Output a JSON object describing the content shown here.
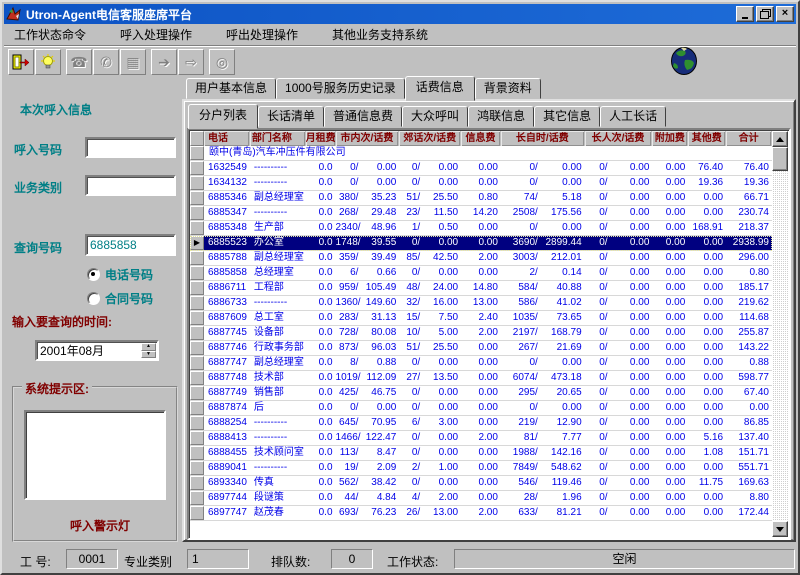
{
  "window": {
    "title": "Utron-Agent电信客服座席平台"
  },
  "menu": {
    "items": [
      "工作状态命令",
      "呼入处理操作",
      "呼出处理操作",
      "其他业务支持系统"
    ]
  },
  "toolbar": {
    "icons": [
      "exit-door-icon",
      "bulb-icon",
      "phone-answer-icon",
      "phone-hangup-icon",
      "hold-icon",
      "transfer-arrow-icon",
      "phone-forward-icon",
      "timer-icon"
    ],
    "globe": "globe-icon"
  },
  "left_panel": {
    "header": "本次呼入信息",
    "caller_label": "呼入号码",
    "caller_value": "",
    "service_label": "业务类别",
    "service_value": "",
    "query_label": "查询号码",
    "query_value": "6885858",
    "radio_phone": "电话号码",
    "radio_contract": "合同号码",
    "time_label": "输入要查询的时间:",
    "time_value": "2001年08月",
    "tips_label": "系统提示区:",
    "tips_value": "",
    "alarm_label": "呼入警示灯"
  },
  "tabs": {
    "main": [
      "用户基本信息",
      "1000号服务历史记录",
      "话费信息",
      "背景资料"
    ],
    "main_active": "话费信息",
    "sub": [
      "分户列表",
      "长话清单",
      "普通信息费",
      "大众呼叫",
      "鸿联信息",
      "其它信息",
      "人工长话"
    ],
    "sub_active": "分户列表"
  },
  "table": {
    "headers": [
      "电话",
      "部门名称",
      "月租费",
      "市内次/话费",
      "郊话次/话费",
      "信息费",
      "长自时/话费",
      "长人次/话费",
      "附加费",
      "其他费",
      "合计"
    ],
    "company_row": "颐中(青岛)汽车冲压件有限公司",
    "selected_phone": "6885523",
    "rows": [
      [
        "1632549",
        "----------",
        "0.0",
        "0/",
        "0.00",
        "0/",
        "0.00",
        "0.00",
        "0/",
        "0.00",
        "0/",
        "0.00",
        "0.00",
        "76.40",
        "76.40"
      ],
      [
        "1634132",
        "----------",
        "0.0",
        "0/",
        "0.00",
        "0/",
        "0.00",
        "0.00",
        "0/",
        "0.00",
        "0/",
        "0.00",
        "0.00",
        "19.36",
        "19.36"
      ],
      [
        "6885346",
        "副总经理室",
        "0.0",
        "380/",
        "35.23",
        "51/",
        "25.50",
        "0.80",
        "74/",
        "5.18",
        "0/",
        "0.00",
        "0.00",
        "0.00",
        "66.71"
      ],
      [
        "6885347",
        "----------",
        "0.0",
        "268/",
        "29.48",
        "23/",
        "11.50",
        "14.20",
        "2508/",
        "175.56",
        "0/",
        "0.00",
        "0.00",
        "0.00",
        "230.74"
      ],
      [
        "6885348",
        "生产部",
        "0.0",
        "2340/",
        "48.96",
        "1/",
        "0.50",
        "0.00",
        "0/",
        "0.00",
        "0/",
        "0.00",
        "0.00",
        "168.91",
        "218.37"
      ],
      [
        "6885523",
        "办公室",
        "0.0",
        "1748/",
        "39.55",
        "0/",
        "0.00",
        "0.00",
        "3690/",
        "2899.44",
        "0/",
        "0.00",
        "0.00",
        "0.00",
        "2938.99"
      ],
      [
        "6885788",
        "副总经理室",
        "0.0",
        "359/",
        "39.49",
        "85/",
        "42.50",
        "2.00",
        "3003/",
        "212.01",
        "0/",
        "0.00",
        "0.00",
        "0.00",
        "296.00"
      ],
      [
        "6885858",
        "总经理室",
        "0.0",
        "6/",
        "0.66",
        "0/",
        "0.00",
        "0.00",
        "2/",
        "0.14",
        "0/",
        "0.00",
        "0.00",
        "0.00",
        "0.80"
      ],
      [
        "6886711",
        "工程部",
        "0.0",
        "959/",
        "105.49",
        "48/",
        "24.00",
        "14.80",
        "584/",
        "40.88",
        "0/",
        "0.00",
        "0.00",
        "0.00",
        "185.17"
      ],
      [
        "6886733",
        "----------",
        "0.0",
        "1360/",
        "149.60",
        "32/",
        "16.00",
        "13.00",
        "586/",
        "41.02",
        "0/",
        "0.00",
        "0.00",
        "0.00",
        "219.62"
      ],
      [
        "6887609",
        "总工室",
        "0.0",
        "283/",
        "31.13",
        "15/",
        "7.50",
        "2.40",
        "1035/",
        "73.65",
        "0/",
        "0.00",
        "0.00",
        "0.00",
        "114.68"
      ],
      [
        "6887745",
        "设备部",
        "0.0",
        "728/",
        "80.08",
        "10/",
        "5.00",
        "2.00",
        "2197/",
        "168.79",
        "0/",
        "0.00",
        "0.00",
        "0.00",
        "255.87"
      ],
      [
        "6887746",
        "行政事务部",
        "0.0",
        "873/",
        "96.03",
        "51/",
        "25.50",
        "0.00",
        "267/",
        "21.69",
        "0/",
        "0.00",
        "0.00",
        "0.00",
        "143.22"
      ],
      [
        "6887747",
        "副总经理室",
        "0.0",
        "8/",
        "0.88",
        "0/",
        "0.00",
        "0.00",
        "0/",
        "0.00",
        "0/",
        "0.00",
        "0.00",
        "0.00",
        "0.88"
      ],
      [
        "6887748",
        "技术部",
        "0.0",
        "1019/",
        "112.09",
        "27/",
        "13.50",
        "0.00",
        "6074/",
        "473.18",
        "0/",
        "0.00",
        "0.00",
        "0.00",
        "598.77"
      ],
      [
        "6887749",
        "销售部",
        "0.0",
        "425/",
        "46.75",
        "0/",
        "0.00",
        "0.00",
        "295/",
        "20.65",
        "0/",
        "0.00",
        "0.00",
        "0.00",
        "67.40"
      ],
      [
        "6887874",
        "后",
        "0.0",
        "0/",
        "0.00",
        "0/",
        "0.00",
        "0.00",
        "0/",
        "0.00",
        "0/",
        "0.00",
        "0.00",
        "0.00",
        "0.00"
      ],
      [
        "6888254",
        "----------",
        "0.0",
        "645/",
        "70.95",
        "6/",
        "3.00",
        "0.00",
        "219/",
        "12.90",
        "0/",
        "0.00",
        "0.00",
        "0.00",
        "86.85"
      ],
      [
        "6888413",
        "----------",
        "0.0",
        "1466/",
        "122.47",
        "0/",
        "0.00",
        "2.00",
        "81/",
        "7.77",
        "0/",
        "0.00",
        "0.00",
        "5.16",
        "137.40"
      ],
      [
        "6888455",
        "技术顾问室",
        "0.0",
        "113/",
        "8.47",
        "0/",
        "0.00",
        "0.00",
        "1988/",
        "142.16",
        "0/",
        "0.00",
        "0.00",
        "1.08",
        "151.71"
      ],
      [
        "6889041",
        "----------",
        "0.0",
        "19/",
        "2.09",
        "2/",
        "1.00",
        "0.00",
        "7849/",
        "548.62",
        "0/",
        "0.00",
        "0.00",
        "0.00",
        "551.71"
      ],
      [
        "6893340",
        "传真",
        "0.0",
        "562/",
        "38.42",
        "0/",
        "0.00",
        "0.00",
        "546/",
        "119.46",
        "0/",
        "0.00",
        "0.00",
        "11.75",
        "169.63"
      ],
      [
        "6897744",
        "段谜策",
        "0.0",
        "44/",
        "4.84",
        "4/",
        "2.00",
        "0.00",
        "28/",
        "1.96",
        "0/",
        "0.00",
        "0.00",
        "0.00",
        "8.80"
      ],
      [
        "6897747",
        "赵茂春",
        "0.0",
        "693/",
        "76.23",
        "26/",
        "13.00",
        "2.00",
        "633/",
        "81.21",
        "0/",
        "0.00",
        "0.00",
        "0.00",
        "172.44"
      ]
    ]
  },
  "statusbar": {
    "op_label": "工 号:",
    "op_value": "0001",
    "cat_label": "专业类别",
    "cat_value": "1",
    "queue_label": "排队数:",
    "queue_value": "0",
    "state_label": "工作状态:",
    "state_value": "空闲"
  },
  "colors": {
    "title_blue": "#1260d0",
    "selection": "#000080",
    "table_text": "#0000e8",
    "header_text": "#800000",
    "label_teal": "#007f86",
    "label_red": "#800000"
  }
}
